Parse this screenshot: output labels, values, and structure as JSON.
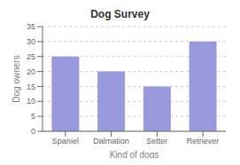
{
  "chart_data": {
    "type": "bar",
    "title": "Dog Survey",
    "categories": [
      "Spaniel",
      "Dalmation",
      "Setter",
      "Retriever"
    ],
    "values": [
      25,
      20,
      15,
      30
    ],
    "color": "#9999dd",
    "xlabel": "Kind of dogs",
    "ylabel": "Dog owners",
    "ylim": [
      0,
      35
    ],
    "yticks": [
      0,
      5,
      10,
      15,
      20,
      25,
      30,
      35
    ],
    "grid": true
  }
}
